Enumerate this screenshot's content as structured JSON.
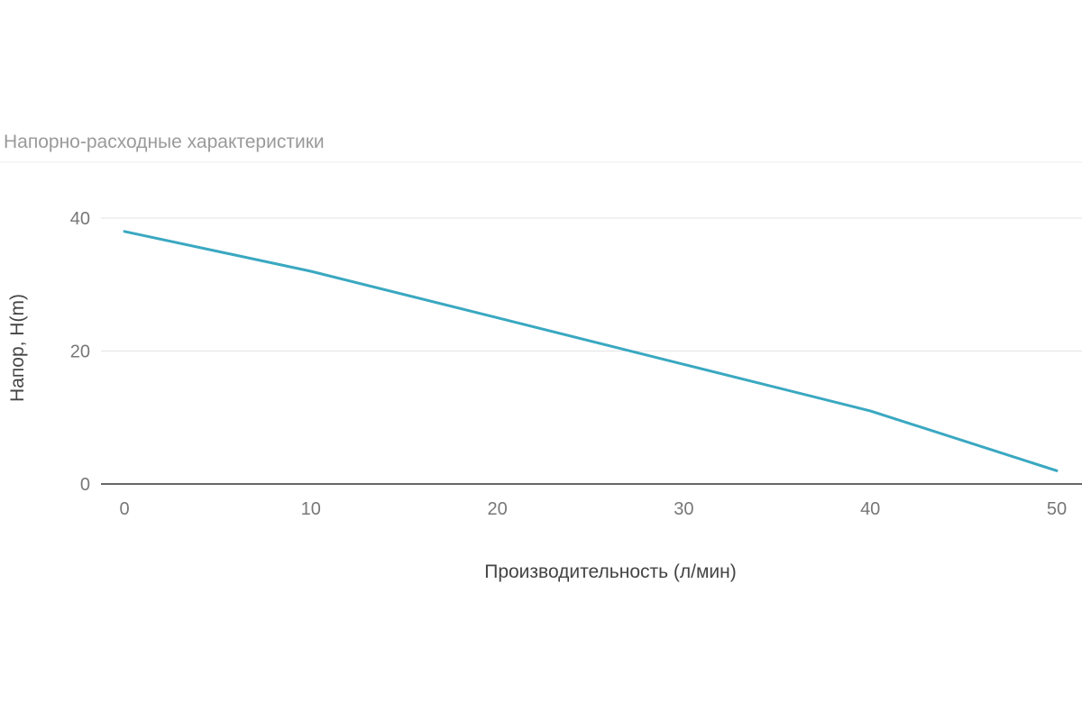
{
  "title": "Напорно-расходные характеристики",
  "chart_data": {
    "type": "line",
    "title": "Напорно-расходные характеристики",
    "xlabel": "Производительность (л/мин)",
    "ylabel": "Напор, H(m)",
    "xlim": [
      0,
      50
    ],
    "ylim": [
      0,
      40
    ],
    "xticks": [
      0,
      10,
      20,
      30,
      40,
      50
    ],
    "yticks": [
      0,
      20,
      40
    ],
    "grid": true,
    "series": [
      {
        "color": "#3aa8c1",
        "x": [
          0,
          10,
          20,
          30,
          40,
          50
        ],
        "y": [
          38,
          32,
          25,
          18,
          11,
          2
        ]
      }
    ]
  }
}
